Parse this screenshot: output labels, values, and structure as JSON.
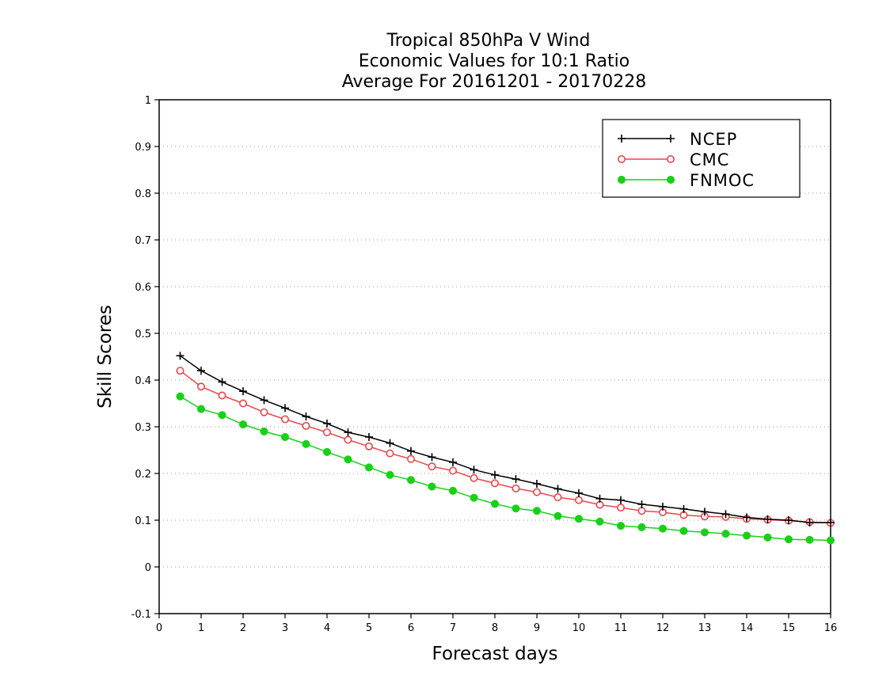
{
  "chart_data": {
    "type": "line",
    "title": [
      "Tropical 850hPa V Wind",
      "Economic Values for 10:1 Ratio",
      "Average For 20161201 - 20170228"
    ],
    "xlabel": "Forecast days",
    "ylabel": "Skill Scores",
    "xlim": [
      0,
      16
    ],
    "ylim": [
      -0.1,
      1
    ],
    "xticks": [
      0,
      1,
      2,
      3,
      4,
      5,
      6,
      7,
      8,
      9,
      10,
      11,
      12,
      13,
      14,
      15,
      16
    ],
    "xtick_labels": [
      "0",
      "1",
      "2",
      "3",
      "4",
      "5",
      "6",
      "7",
      "8",
      "9",
      "10",
      "11",
      "12",
      "13",
      "14",
      "15",
      "16"
    ],
    "yticks": [
      -0.1,
      0,
      0.1,
      0.2,
      0.3,
      0.4,
      0.5,
      0.6,
      0.7,
      0.8,
      0.9,
      1
    ],
    "ytick_labels": [
      "-0.1",
      "0",
      "0.1",
      "0.2",
      "0.3",
      "0.4",
      "0.5",
      "0.6",
      "0.7",
      "0.8",
      "0.9",
      "1"
    ],
    "grid": "horizontal dotted",
    "legend_position": "top-right",
    "x": [
      0.5,
      1,
      1.5,
      2,
      2.5,
      3,
      3.5,
      4,
      4.5,
      5,
      5.5,
      6,
      6.5,
      7,
      7.5,
      8,
      8.5,
      9,
      9.5,
      10,
      10.5,
      11,
      11.5,
      12,
      12.5,
      13,
      13.5,
      14,
      14.5,
      15,
      15.5,
      16
    ],
    "series": [
      {
        "name": "NCEP",
        "color": "#000000",
        "marker": "plus",
        "values": [
          0.452,
          0.42,
          0.396,
          0.376,
          0.357,
          0.34,
          0.322,
          0.307,
          0.288,
          0.278,
          0.265,
          0.248,
          0.235,
          0.224,
          0.208,
          0.197,
          0.188,
          0.178,
          0.167,
          0.158,
          0.146,
          0.143,
          0.134,
          0.129,
          0.124,
          0.118,
          0.113,
          0.106,
          0.102,
          0.1,
          0.095,
          0.095
        ]
      },
      {
        "name": "CMC",
        "color": "#e8464b",
        "marker": "open-circle",
        "values": [
          0.42,
          0.386,
          0.367,
          0.35,
          0.331,
          0.316,
          0.302,
          0.288,
          0.272,
          0.258,
          0.243,
          0.231,
          0.215,
          0.206,
          0.19,
          0.179,
          0.168,
          0.16,
          0.149,
          0.143,
          0.133,
          0.127,
          0.12,
          0.117,
          0.111,
          0.108,
          0.107,
          0.103,
          0.101,
          0.099,
          0.096,
          0.094
        ]
      },
      {
        "name": "FNMOC",
        "color": "#18d018",
        "marker": "filled-circle",
        "values": [
          0.365,
          0.338,
          0.325,
          0.305,
          0.29,
          0.278,
          0.263,
          0.246,
          0.23,
          0.213,
          0.197,
          0.186,
          0.172,
          0.163,
          0.148,
          0.135,
          0.125,
          0.12,
          0.109,
          0.103,
          0.097,
          0.088,
          0.085,
          0.082,
          0.077,
          0.074,
          0.071,
          0.067,
          0.063,
          0.059,
          0.058,
          0.057
        ]
      }
    ]
  }
}
